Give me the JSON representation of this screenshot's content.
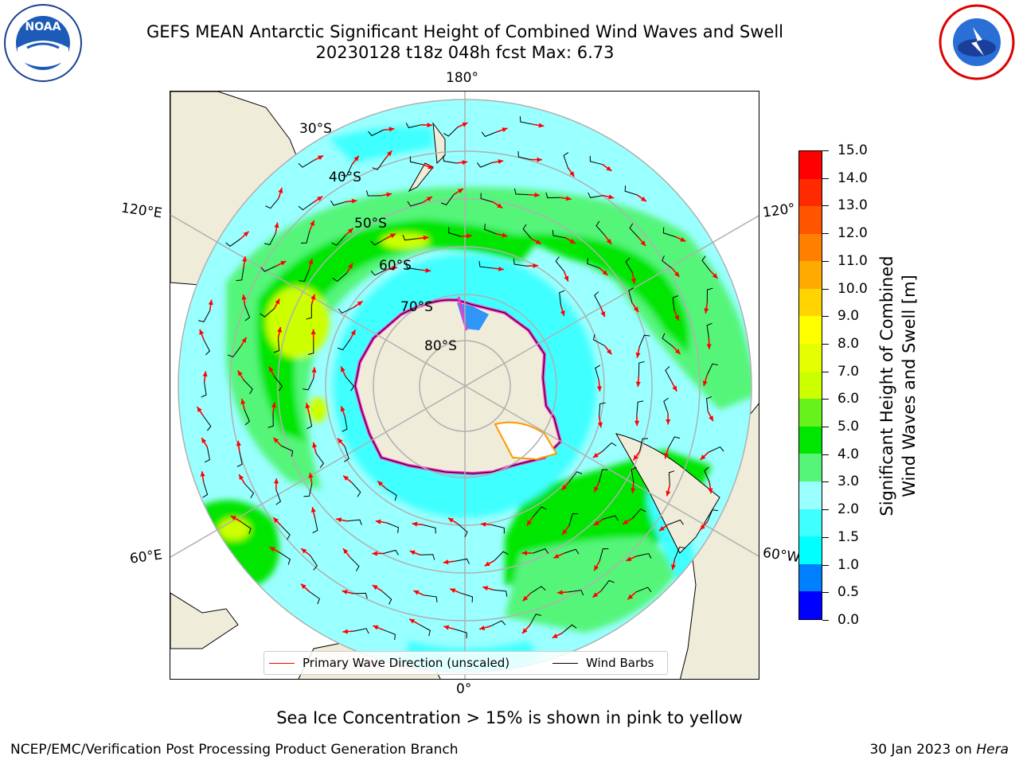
{
  "header": {
    "title_line1": "GEFS MEAN Antarctic Significant Height of Combined Wind Waves and Swell",
    "title_line2": "20230128 t18z 048h fcst   Max: 6.73"
  },
  "map": {
    "lon_labels": {
      "top": "180°",
      "bottom": "0°",
      "left_upper": "120°E",
      "left_lower": "60°E",
      "right_upper": "120°",
      "right_lower": "60°W"
    },
    "lat_labels": [
      "30°S",
      "40°S",
      "50°S",
      "60°S",
      "70°S",
      "80°S"
    ],
    "colors": {
      "land": "#efecda",
      "ice_edge": "#ff33cc",
      "wave_arrow": "#ff0000",
      "wind_barb": "#000000",
      "graticule": "#b0b0b0"
    }
  },
  "legend": {
    "wave_label": "Primary Wave Direction (unscaled)",
    "wind_label": "Wind Barbs"
  },
  "colorbar": {
    "title_line1": "Significant Height of Combined",
    "title_line2": "Wind Waves and Swell [m]",
    "ticks": [
      "0.0",
      "0.5",
      "1.0",
      "1.5",
      "2.0",
      "3.0",
      "4.0",
      "5.0",
      "6.0",
      "7.0",
      "8.0",
      "9.0",
      "10.0",
      "11.0",
      "12.0",
      "13.0",
      "14.0",
      "15.0"
    ],
    "colors": [
      "#0000ff",
      "#0080ff",
      "#00ffff",
      "#40ffff",
      "#99ffff",
      "#55f57a",
      "#00e600",
      "#66f21a",
      "#ccff00",
      "#e6ff00",
      "#ffff00",
      "#ffd400",
      "#ffaa00",
      "#ff8000",
      "#ff5500",
      "#ff2a00",
      "#ff0000"
    ]
  },
  "footer": {
    "note": "Sea Ice Concentration > 15% is shown in pink to yellow",
    "credit_left": "NCEP/EMC/Verification Post Processing Product Generation Branch",
    "credit_right_date": "30 Jan 2023 on ",
    "credit_right_host": "Hera"
  },
  "logos": {
    "left": "noaa-logo",
    "right": "nws-logo"
  }
}
